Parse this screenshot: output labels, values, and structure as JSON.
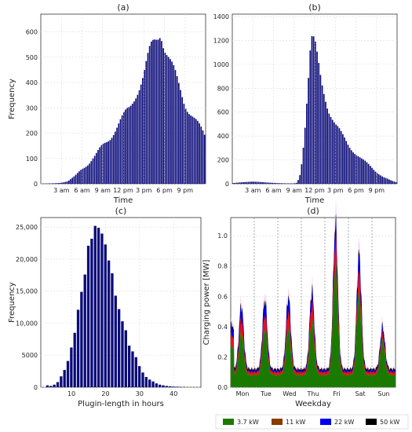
{
  "chart_data": [
    {
      "type": "bar",
      "title": "(a)",
      "xlabel": "Time",
      "ylabel": "Frequency",
      "x_ticks": [
        "3 am",
        "6 am",
        "9 am",
        "12 pm",
        "3 pm",
        "6 pm",
        "9 pm"
      ],
      "y_ticks": [
        0,
        100,
        200,
        300,
        400,
        500,
        600
      ],
      "ylim": [
        0,
        670
      ],
      "bin_width_hours": 0.25,
      "series": [
        {
          "x_hours": [
            0,
            1,
            2,
            3,
            4,
            5,
            6,
            7,
            8,
            9,
            10,
            11,
            12,
            13,
            14,
            15,
            16,
            17,
            17.5,
            18,
            19,
            20,
            21,
            22,
            23,
            24
          ],
          "values": [
            0,
            1,
            2,
            4,
            10,
            30,
            60,
            80,
            110,
            150,
            180,
            220,
            260,
            300,
            370,
            430,
            520,
            580,
            620,
            560,
            470,
            390,
            320,
            280,
            230,
            180
          ]
        }
      ]
    },
    {
      "type": "bar",
      "title": "(b)",
      "xlabel": "Time",
      "ylabel": "",
      "x_ticks": [
        "3 am",
        "6 am",
        "9 am",
        "12 pm",
        "3 pm",
        "6 pm",
        "9 pm"
      ],
      "y_ticks": [
        0,
        200,
        400,
        600,
        800,
        1000,
        1200,
        1400
      ],
      "ylim": [
        0,
        1420
      ],
      "bin_width_hours": 0.25,
      "series": [
        {
          "x_hours": [
            0,
            1,
            2,
            3,
            4,
            5,
            6,
            7,
            8,
            9,
            9.5,
            10,
            10.5,
            11,
            11.5,
            12,
            12.5,
            13,
            13.5,
            14,
            15,
            16,
            17,
            18,
            19,
            20,
            21,
            22,
            23,
            24
          ],
          "values": [
            5,
            10,
            15,
            20,
            15,
            10,
            8,
            5,
            3,
            3,
            10,
            100,
            400,
            800,
            1200,
            1150,
            1000,
            850,
            750,
            650,
            500,
            400,
            320,
            260,
            200,
            150,
            100,
            60,
            30,
            10
          ]
        }
      ]
    },
    {
      "type": "bar",
      "title": "(c)",
      "xlabel": "Plugin-length in hours",
      "ylabel": "Frequency",
      "x_ticks": [
        10,
        20,
        30,
        40
      ],
      "y_ticks": [
        "0",
        "5000",
        "10,000",
        "15,000",
        "20,000",
        "25,000"
      ],
      "xlim": [
        1,
        48
      ],
      "ylim": [
        0,
        26500
      ],
      "categories": [
        3,
        4,
        5,
        6,
        7,
        8,
        9,
        10,
        11,
        12,
        13,
        14,
        15,
        16,
        17,
        18,
        19,
        20,
        21,
        22,
        23,
        24,
        25,
        26,
        27,
        28,
        29,
        30,
        31,
        32,
        33,
        34,
        35,
        36,
        37,
        38,
        39,
        40,
        41,
        42,
        43
      ],
      "values": [
        300,
        200,
        400,
        800,
        1700,
        2700,
        4100,
        6200,
        8500,
        12100,
        14900,
        17600,
        22100,
        23200,
        25200,
        24900,
        24000,
        22300,
        19800,
        17800,
        14300,
        12200,
        10300,
        8900,
        6500,
        5600,
        4700,
        3300,
        2300,
        1600,
        1200,
        900,
        600,
        400,
        300,
        200,
        150,
        100,
        80,
        60,
        40
      ]
    },
    {
      "type": "area",
      "title": "(d)",
      "xlabel": "Weekday",
      "ylabel": "Charging power [MW]",
      "categories": [
        "Mon",
        "Tue",
        "Wed",
        "Thu",
        "Fri",
        "Sat",
        "Sun"
      ],
      "y_ticks": [
        "0.0",
        "0.2",
        "0.4",
        "0.6",
        "0.8",
        "1.0"
      ],
      "ylim": [
        0,
        1.12
      ],
      "legend": "bottom",
      "series": [
        {
          "name": "3.7 kW",
          "color": "#1a7a00",
          "daily_peak": [
            0.35,
            0.38,
            0.38,
            0.42,
            0.78,
            0.6,
            0.3
          ],
          "night_min": 0.08
        },
        {
          "name": "11 kW",
          "color": "#8b3a00",
          "daily_peak": [
            0.45,
            0.48,
            0.5,
            0.55,
            0.95,
            0.75,
            0.35
          ],
          "night_min": 0.1
        },
        {
          "name": "22 kW",
          "color": "#0000ee",
          "daily_peak": [
            0.52,
            0.56,
            0.58,
            0.62,
            1.05,
            0.85,
            0.39
          ],
          "night_min": 0.11
        },
        {
          "name": "50 kW",
          "color": "#000000",
          "daily_peak": [
            0.54,
            0.58,
            0.6,
            0.64,
            1.08,
            0.88,
            0.4
          ],
          "night_min": 0.12
        }
      ]
    }
  ]
}
